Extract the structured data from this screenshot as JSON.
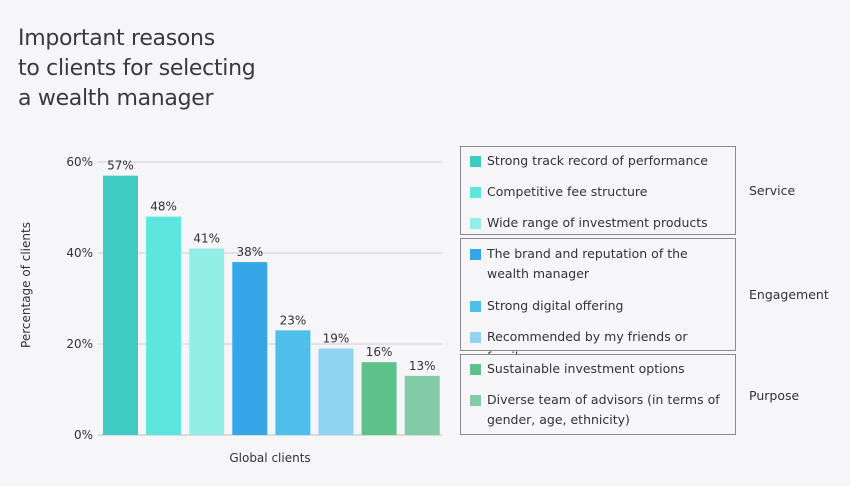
{
  "title_lines": [
    "Important reasons",
    "to clients for selecting",
    "a wealth manager"
  ],
  "chart_data": {
    "type": "bar",
    "title": "Important reasons to clients for selecting a wealth manager",
    "xlabel": "Global clients",
    "ylabel": "Percentage of clients",
    "ylim": [
      0,
      60
    ],
    "yticks": [
      0,
      20,
      40,
      60
    ],
    "ytick_labels": [
      "0%",
      "20%",
      "40%",
      "60%"
    ],
    "categories": [
      "Strong track record of performance",
      "Competitive fee structure",
      "Wide range of investment products",
      "The brand and reputation of the wealth manager",
      "Strong digital offering",
      "Recommended by my friends or family",
      "Sustainable investment options",
      "Diverse team of advisors (in terms of gender, age, ethnicity)"
    ],
    "values": [
      57,
      48,
      41,
      38,
      23,
      19,
      16,
      13
    ],
    "value_labels": [
      "57%",
      "48%",
      "41%",
      "38%",
      "23%",
      "19%",
      "16%",
      "13%"
    ],
    "colors": [
      "#3fcbc1",
      "#5de6de",
      "#92efe6",
      "#35a6e8",
      "#4ebeea",
      "#8fd3f2",
      "#5cc28a",
      "#82cba6"
    ],
    "grid": true,
    "legend_position": "right",
    "legend_groups": [
      {
        "name": "Service",
        "items": [
          0,
          1,
          2
        ]
      },
      {
        "name": "Engagement",
        "items": [
          3,
          4,
          5
        ]
      },
      {
        "name": "Purpose",
        "items": [
          6,
          7
        ]
      }
    ]
  }
}
